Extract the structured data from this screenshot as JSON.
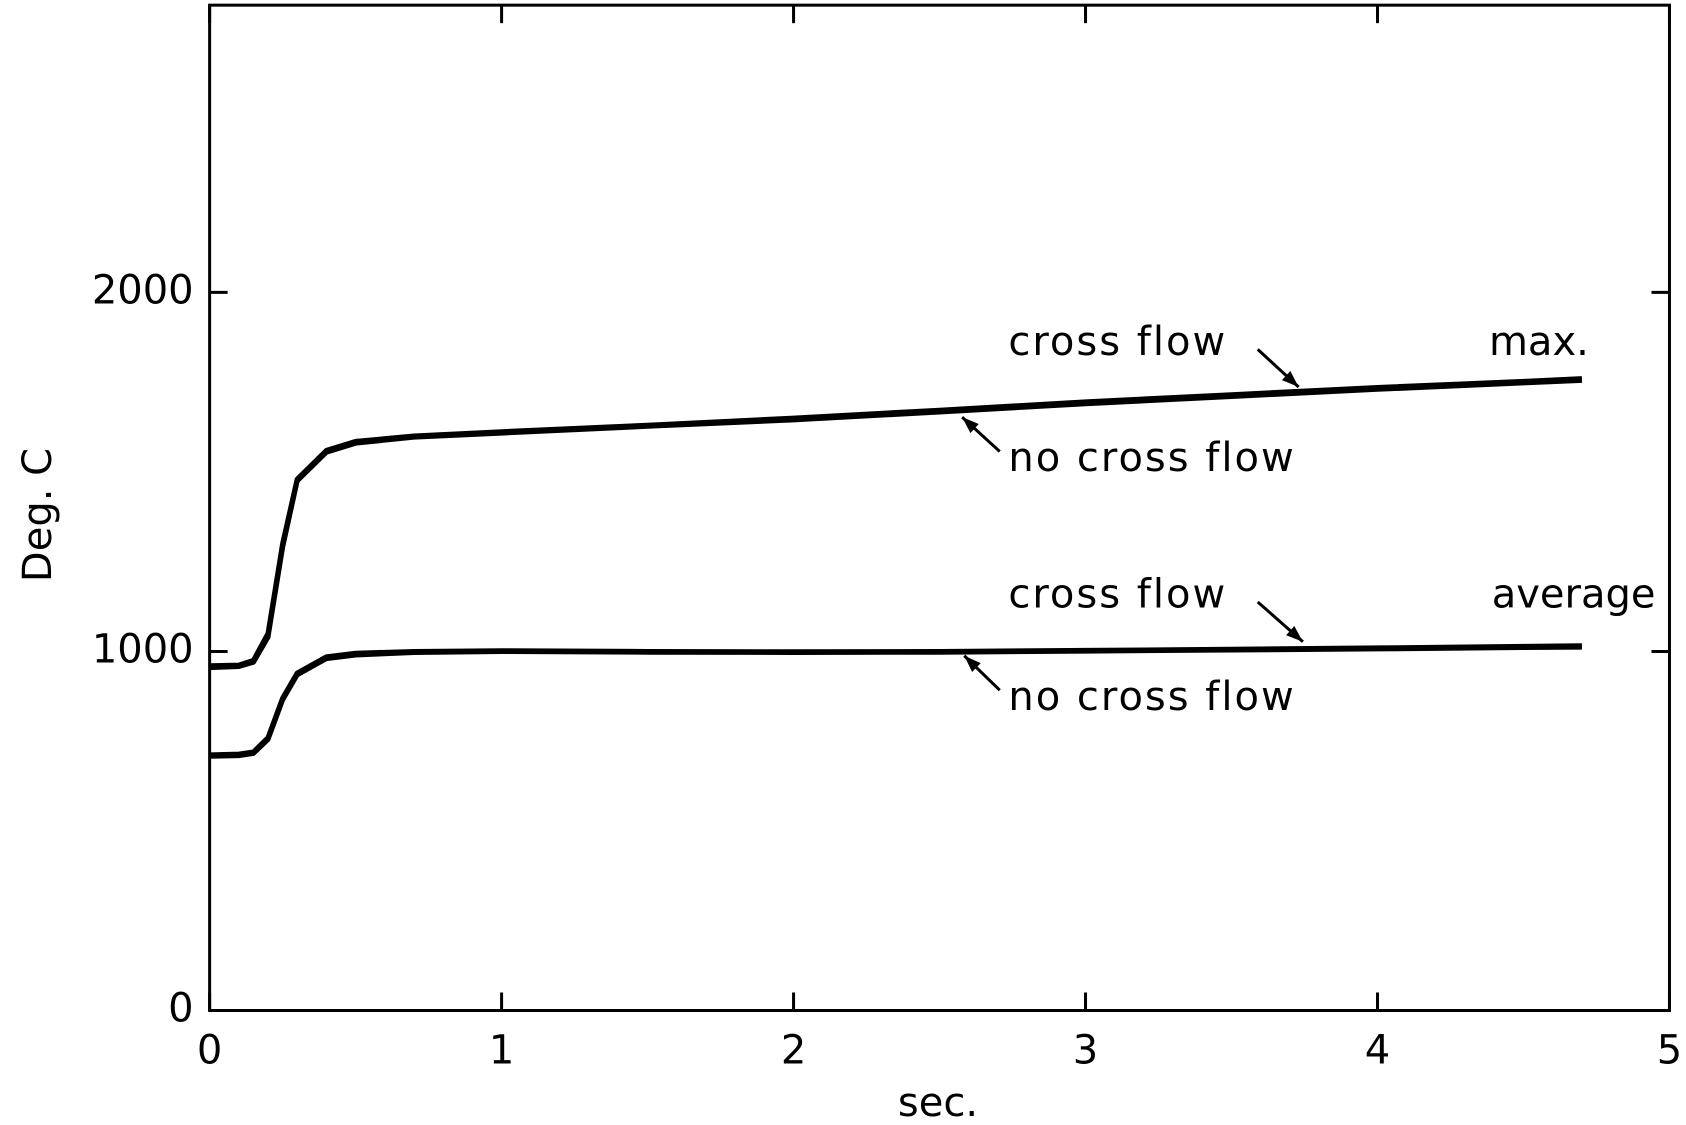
{
  "chart_data": {
    "type": "line",
    "xlabel": "sec.",
    "ylabel": "Deg. C",
    "x": [
      0,
      0.1,
      0.15,
      0.2,
      0.25,
      0.3,
      0.4,
      0.5,
      0.7,
      1,
      1.5,
      2,
      2.5,
      3,
      3.5,
      4,
      4.5,
      4.7
    ],
    "series": [
      {
        "name": "cross flow",
        "color": "#000000",
        "values": [
          960,
          962,
          975,
          1050,
          1300,
          1480,
          1560,
          1585,
          1600,
          1612,
          1630,
          1650,
          1672,
          1695,
          1715,
          1735,
          1752,
          1760
        ]
      },
      {
        "name": "no cross flow",
        "color": "#000000",
        "values": [
          955,
          958,
          970,
          1040,
          1290,
          1475,
          1555,
          1580,
          1597,
          1608,
          1627,
          1645,
          1667,
          1690,
          1710,
          1730,
          1748,
          1755
        ]
      },
      {
        "name": "cross flow",
        "color": "#000000",
        "values": [
          712,
          714,
          720,
          760,
          870,
          940,
          985,
          995,
          1000,
          1002,
          1000,
          999,
          1000,
          1003,
          1006,
          1010,
          1014,
          1016
        ]
      },
      {
        "name": "no cross flow",
        "color": "#000000",
        "values": [
          708,
          710,
          716,
          755,
          865,
          935,
          980,
          990,
          997,
          1000,
          998,
          997,
          998,
          1001,
          1004,
          1007,
          1011,
          1012
        ]
      }
    ],
    "annotations": [
      "max.",
      "average"
    ],
    "xlim": [
      0,
      5
    ],
    "xticks": [
      0,
      1,
      2,
      3,
      4,
      5
    ],
    "ylim": [
      0,
      2800
    ],
    "yticks": [
      0,
      1000,
      2000
    ],
    "grid": false
  }
}
